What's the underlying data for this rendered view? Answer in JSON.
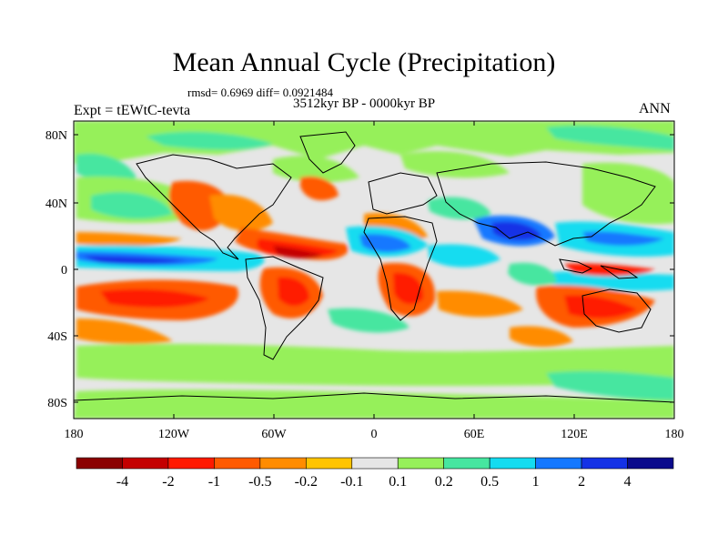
{
  "title": "Mean Annual Cycle (Precipitation)",
  "stats": "rmsd= 0.6969 diff= 0.0921484",
  "period": "3512kyr BP - 0000kyr BP",
  "experiment": "Expt = tEWtC-tevta",
  "season": "ANN",
  "lat_ticks": [
    "80N",
    "40N",
    "0",
    "40S",
    "80S"
  ],
  "lon_ticks": [
    "180",
    "120W",
    "60W",
    "0",
    "60E",
    "120E",
    "180"
  ],
  "colorbar": {
    "labels": [
      "-4",
      "-2",
      "-1",
      "-0.5",
      "-0.2",
      "-0.1",
      "0.1",
      "0.2",
      "0.5",
      "1",
      "2",
      "4"
    ],
    "colors": [
      "#8b0000",
      "#c40000",
      "#ff1a00",
      "#ff5a00",
      "#ff8c00",
      "#ffc400",
      "#e6e6e6",
      "#96f05a",
      "#46e6a0",
      "#14dcf0",
      "#1478ff",
      "#1432e6",
      "#0a0a8c"
    ]
  },
  "map_colors": {
    "neutral": "#e6e6e6",
    "dry_strong": "#c40000",
    "dry_mid": "#ff1a00",
    "dry": "#ff5a00",
    "dry_light": "#ff8c00",
    "dry_faint": "#ffc400",
    "wet_faint": "#96f05a",
    "wet": "#46e6a0",
    "wet_mid": "#14dcf0",
    "wet_strong": "#1478ff",
    "wet_max": "#1432e6"
  }
}
